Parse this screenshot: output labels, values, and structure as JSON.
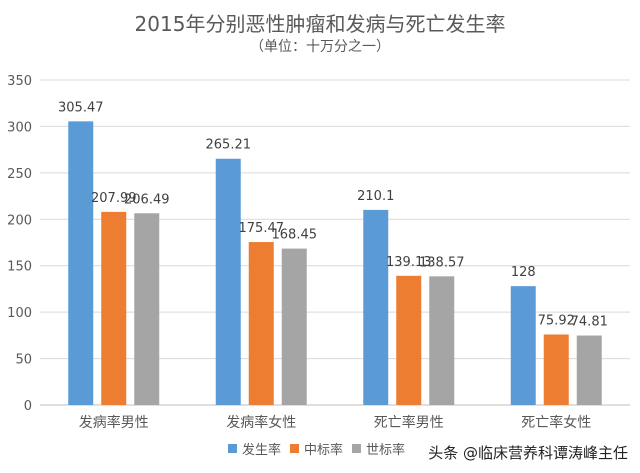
{
  "chart_data": {
    "type": "bar",
    "title": "2015年分别恶性肿瘤和发病与死亡发生率",
    "subtitle": "（单位：十万分之一）",
    "categories": [
      "发病率男性",
      "发病率女性",
      "死亡率男性",
      "死亡率女性"
    ],
    "series": [
      {
        "name": "发生率",
        "values": [
          305.47,
          265.21,
          210.1,
          128
        ],
        "labels": [
          "305.47",
          "265.21",
          "210.1",
          "128"
        ],
        "color": "#5B9BD5"
      },
      {
        "name": "中标率",
        "values": [
          207.99,
          175.47,
          139.13,
          75.92
        ],
        "labels": [
          "207.99",
          "175.47",
          "139.13",
          "75.92"
        ],
        "color": "#ED7D31"
      },
      {
        "name": "世标率",
        "values": [
          206.49,
          168.45,
          138.57,
          74.81
        ],
        "labels": [
          "206.49",
          "168.45",
          "138.57",
          "74.81"
        ],
        "color": "#A5A5A5"
      }
    ],
    "yticks": [
      "0",
      "50",
      "100",
      "150",
      "200",
      "250",
      "300",
      "350"
    ],
    "ylim": [
      0,
      350
    ],
    "grid": true,
    "legend_position": "bottom"
  },
  "watermark": "头条 @临床营养科谭涛峰主任"
}
